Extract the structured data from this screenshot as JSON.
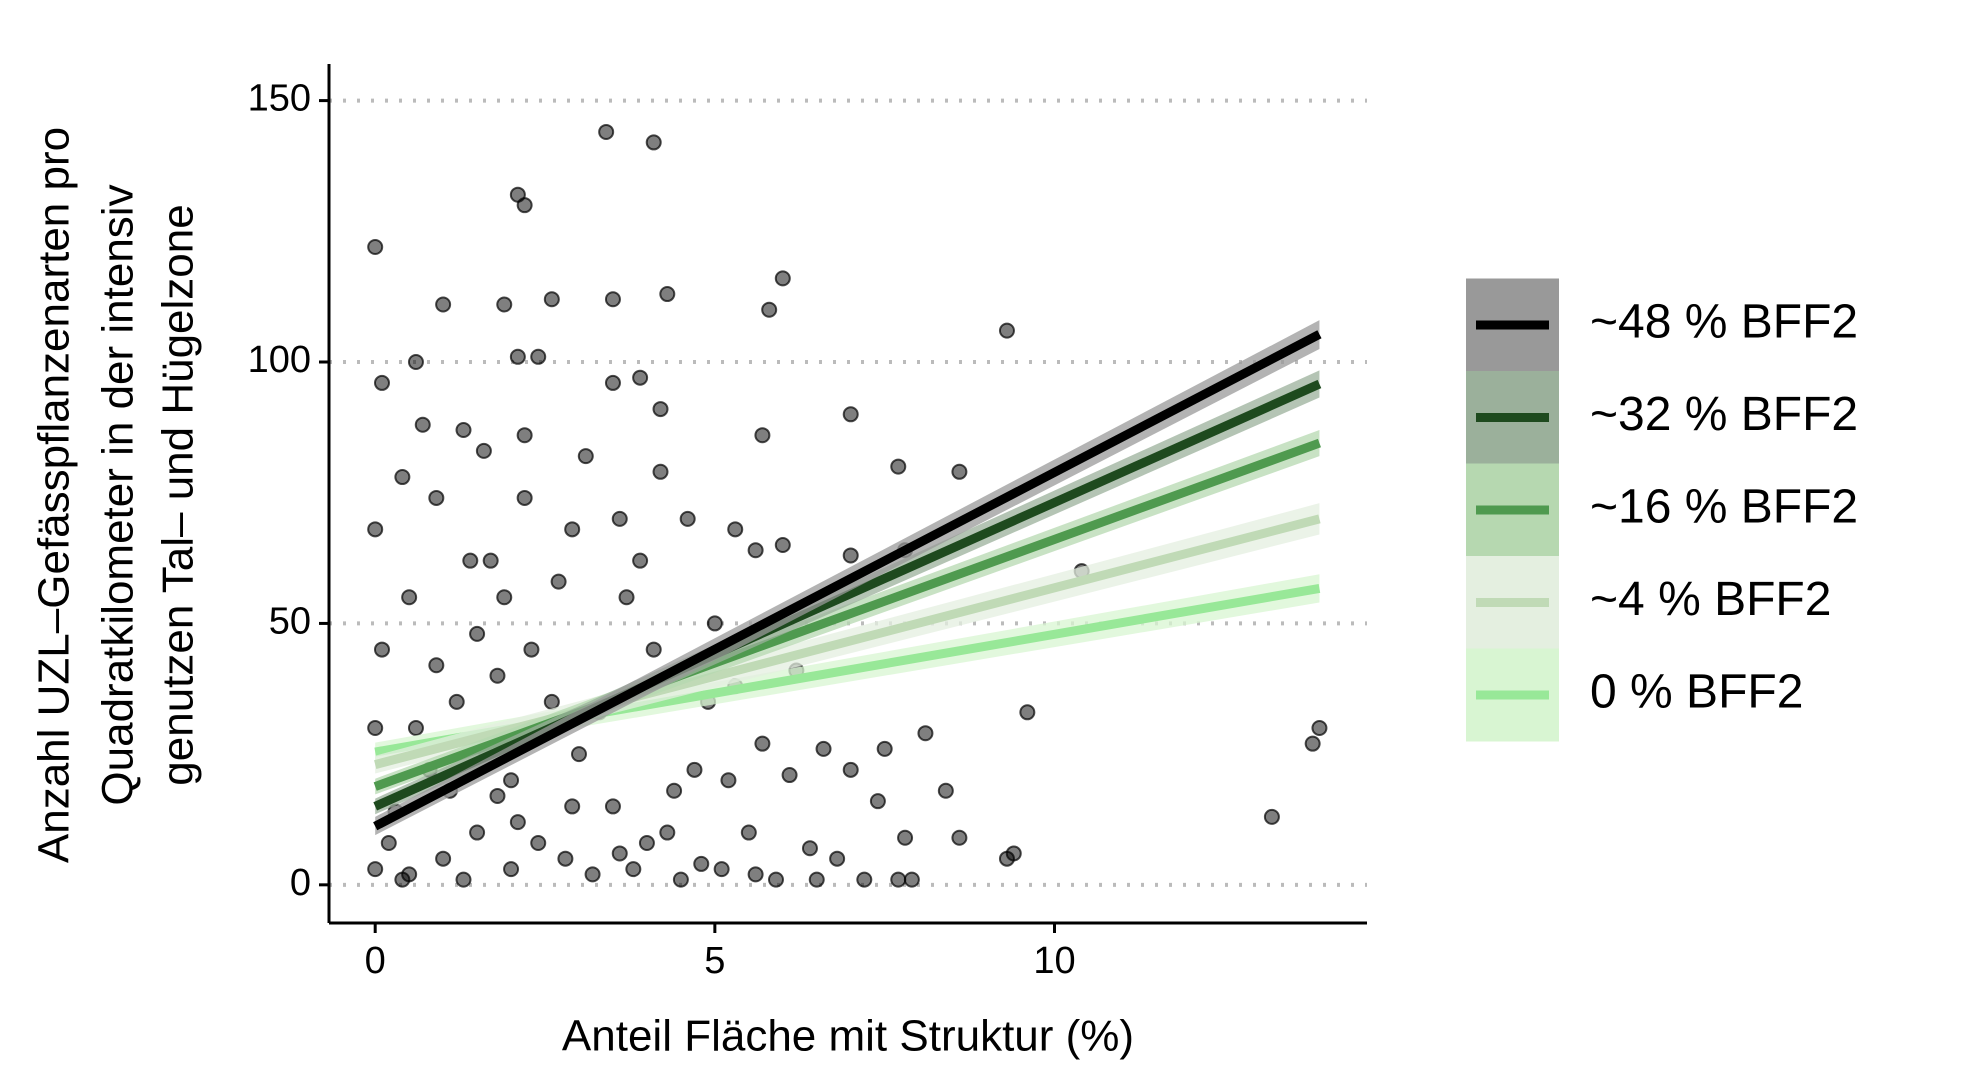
{
  "chart_data": {
    "type": "scatter",
    "xlabel": "Anteil Fläche mit Struktur (%)",
    "ylabel": [
      "Anzahl UZL–Gefässpflanzenarten pro",
      "Quadratkilometer in der intensiv",
      "genutzen Tal– und Hügelzone"
    ],
    "xlim": [
      -0.68,
      14.6
    ],
    "ylim": [
      -7.3,
      157
    ],
    "xticks": [
      0,
      5,
      10
    ],
    "yticks": [
      0,
      50,
      100,
      150
    ],
    "grid": true,
    "legend": "right",
    "points": {
      "color": "#000000",
      "x": [
        0,
        3.4,
        4.1,
        2.1,
        2.2,
        6,
        5.8,
        3.5,
        4.3,
        2.6,
        1.9,
        1,
        9.3,
        2.4,
        2.1,
        0.6,
        0.1,
        3.5,
        3.9,
        7,
        4.2,
        5.7,
        7.7,
        8.6,
        4.2,
        0.4,
        6,
        7.8,
        7,
        5.6,
        1.7,
        3.6,
        4.6,
        0.9,
        2.2,
        5.3,
        0,
        2.9,
        10.4,
        3.7,
        5,
        9.6,
        13.9,
        13.8,
        13.2,
        9.4,
        9.3,
        7.9,
        7.7,
        7.2,
        6.8,
        6.5,
        8.1,
        8.4,
        8.6,
        7.8,
        7.4,
        7,
        6.6,
        7.5,
        6.1,
        5.2,
        5.7,
        6.4,
        5.5,
        5.6,
        5.9,
        5.1,
        4.8,
        4.5,
        4,
        3.5,
        3,
        2.5,
        2,
        1.5,
        1,
        0.5,
        0,
        0.2,
        0.3,
        0.8,
        1.2,
        1.8,
        2.3,
        2.7,
        1.5,
        0.5,
        0.1,
        0,
        0.6,
        1.1,
        1.6,
        2.1,
        2.8,
        3.2,
        3.8,
        4.3,
        4.7,
        4.9,
        5.3,
        6.2,
        2.4,
        1.3,
        0.4,
        2.9,
        3.3,
        4.1,
        0.9,
        1.9,
        2.2,
        1.3,
        1.6,
        3.1,
        0.7,
        3.9,
        2.6,
        1.4,
        2,
        3.6,
        4.4,
        1.8
      ],
      "y": [
        122,
        144,
        142,
        132,
        130,
        116,
        110,
        112,
        113,
        112,
        111,
        111,
        106,
        101,
        101,
        100,
        96,
        96,
        97,
        90,
        91,
        86,
        80,
        79,
        79,
        78,
        65,
        64,
        63,
        64,
        62,
        70,
        70,
        74,
        74,
        68,
        68,
        68,
        60,
        55,
        50,
        33,
        30,
        27,
        13,
        6,
        5,
        1,
        1,
        1,
        5,
        1,
        29,
        18,
        9,
        9,
        16,
        22,
        26,
        26,
        21,
        20,
        27,
        7,
        10,
        2,
        1,
        3,
        4,
        1,
        8,
        15,
        25,
        30,
        20,
        10,
        5,
        2,
        3,
        8,
        14,
        22,
        35,
        40,
        45,
        58,
        48,
        55,
        45,
        30,
        30,
        18,
        26,
        12,
        5,
        2,
        3,
        10,
        22,
        35,
        38,
        41,
        8,
        1,
        1,
        15,
        33,
        45,
        42,
        55,
        86,
        87,
        83,
        82,
        88,
        62,
        35,
        62,
        3,
        6,
        18,
        17
      ]
    },
    "lines": [
      {
        "name": "~48 % BFF2",
        "color": "#000000",
        "band_color": "#999999",
        "x": [
          0,
          13.9
        ],
        "y": [
          11.2,
          105.3
        ],
        "band_lower": [
          9.5,
          102.5
        ],
        "band_upper": [
          13,
          108
        ]
      },
      {
        "name": "~32 % BFF2",
        "color": "#1e4a1e",
        "band_color": "#9bb09b",
        "x": [
          0,
          13.9
        ],
        "y": [
          15,
          95.8
        ],
        "band_lower": [
          13.5,
          93.2
        ],
        "band_upper": [
          16.5,
          98.4
        ]
      },
      {
        "name": "~16 % BFF2",
        "color": "#4f9a4f",
        "band_color": "#b6d8b0",
        "x": [
          0,
          13.9
        ],
        "y": [
          18.8,
          84.5
        ],
        "band_lower": [
          17.3,
          82
        ],
        "band_upper": [
          20.3,
          87
        ]
      },
      {
        "name": "~4 % BFF2",
        "color": "#c0dab6",
        "band_color": "#e4efe0",
        "x": [
          0,
          13.9
        ],
        "y": [
          23,
          70
        ],
        "band_lower": [
          21.3,
          67
        ],
        "band_upper": [
          24.7,
          73
        ]
      },
      {
        "name": "0 % BFF2",
        "color": "#98e898",
        "band_color": "#d8f5d2",
        "x": [
          0,
          13.9
        ],
        "y": [
          25.4,
          56.7
        ],
        "band_lower": [
          23.6,
          54
        ],
        "band_upper": [
          27.2,
          59.4
        ]
      }
    ]
  }
}
